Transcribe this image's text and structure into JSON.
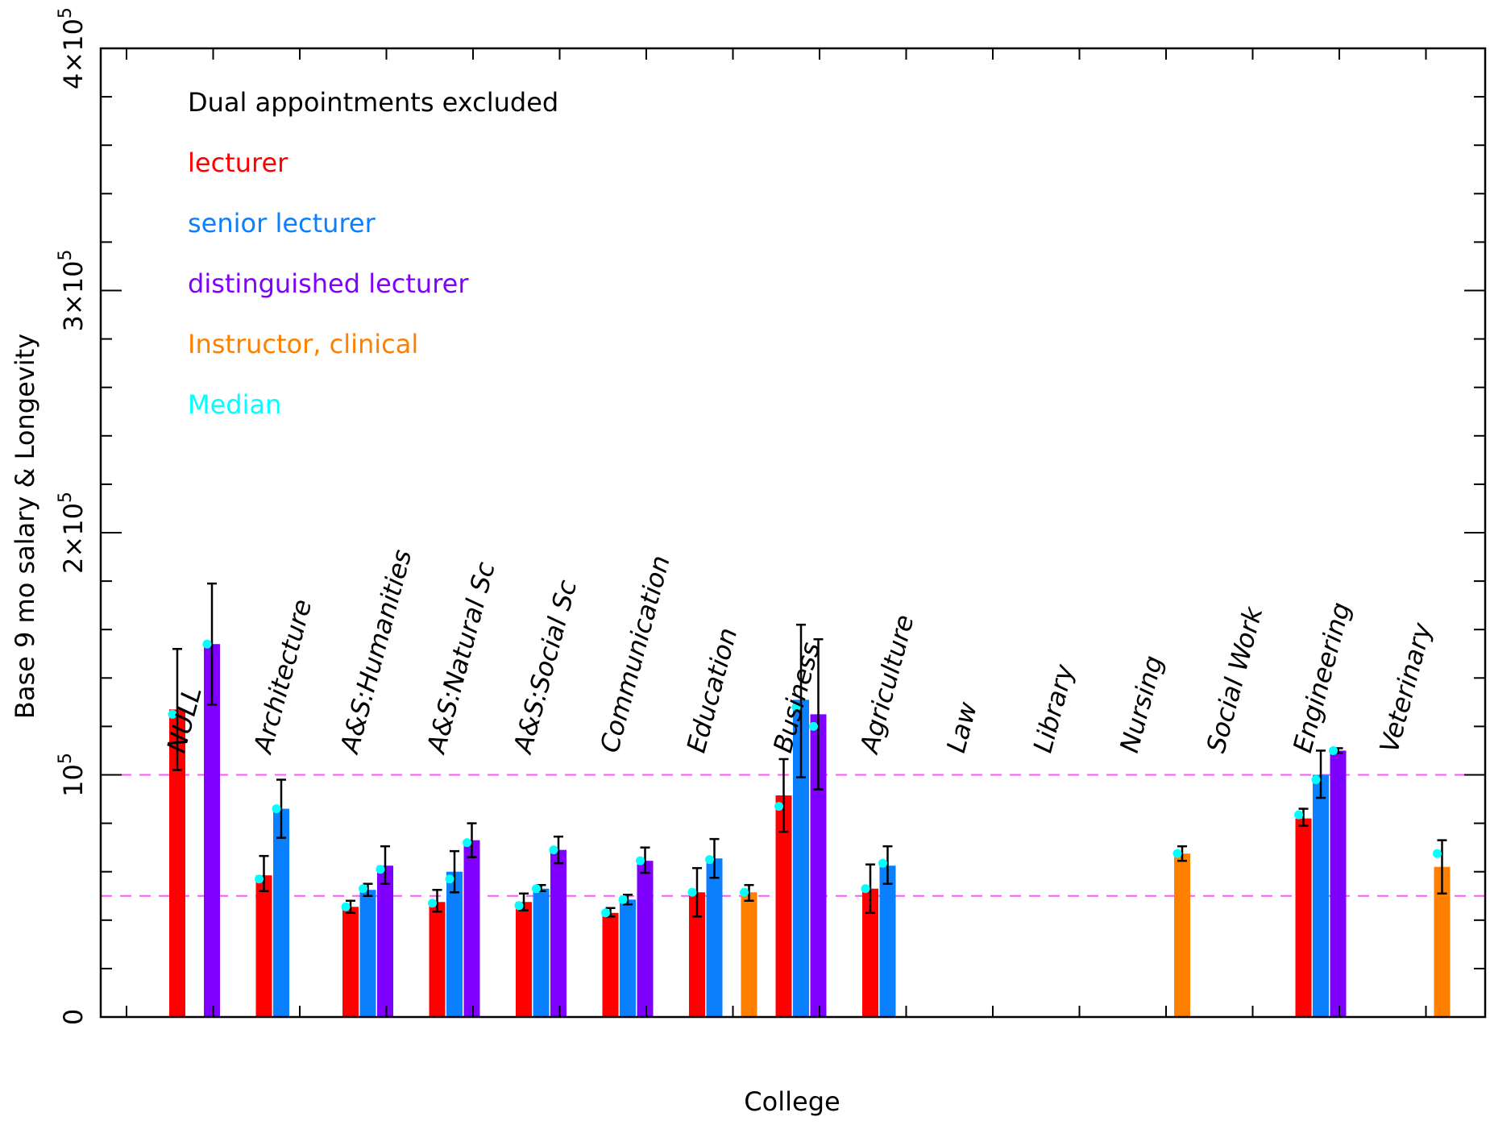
{
  "chart_data": {
    "type": "bar",
    "title": "",
    "xlabel": "College",
    "ylabel": "Base 9 mo salary & Longevity",
    "ylim": [
      0,
      400000
    ],
    "y_ticks": [
      {
        "value": 0,
        "label": "0"
      },
      {
        "value": 100000,
        "label": "10",
        "exp": "5"
      },
      {
        "value": 200000,
        "label": "2×10",
        "exp": "5"
      },
      {
        "value": 300000,
        "label": "3×10",
        "exp": "5"
      },
      {
        "value": 400000,
        "label": "4×10",
        "exp": "5"
      }
    ],
    "reference_lines": [
      50000,
      100000
    ],
    "reference_line_color": "#ff55ff",
    "legend": {
      "placement": "top-left",
      "items": [
        {
          "text": "Dual appointments excluded",
          "color": "#000000"
        },
        {
          "text": "lecturer",
          "color": "#ff0000"
        },
        {
          "text": "senior lecturer",
          "color": "#0a80ff"
        },
        {
          "text": "distinguished lecturer",
          "color": "#8000ff"
        },
        {
          "text": "Instructor, clinical",
          "color": "#ff8000"
        },
        {
          "text": "Median",
          "color": "#00ffff"
        }
      ]
    },
    "series_colors": {
      "lecturer": "#ff0000",
      "senior lecturer": "#0a80ff",
      "distinguished lecturer": "#8000ff",
      "Instructor, clinical": "#ff8000",
      "median": "#00ffff"
    },
    "categories": [
      "NULL",
      "Architecture",
      "A&S:Humanities",
      "A&S:Natural Sc",
      "A&S:Social Sc",
      "Communication",
      "Education",
      "Business",
      "Agriculture",
      "Law",
      "Library",
      "Nursing",
      "Social Work",
      "Engineering",
      "Veterinary"
    ],
    "bars": [
      {
        "category": "NULL",
        "series": "lecturer",
        "slot": 0,
        "value": 127000,
        "err_low": 102000,
        "err_high": 152000,
        "median": 125000
      },
      {
        "category": "NULL",
        "series": "distinguished lecturer",
        "slot": 2,
        "value": 154000,
        "err_low": 129000,
        "err_high": 179000,
        "median": 154000
      },
      {
        "category": "Architecture",
        "series": "lecturer",
        "slot": 0,
        "value": 58500,
        "err_low": 52000,
        "err_high": 66500,
        "median": 57000
      },
      {
        "category": "Architecture",
        "series": "senior lecturer",
        "slot": 1,
        "value": 86000,
        "err_low": 74000,
        "err_high": 98000,
        "median": 86000
      },
      {
        "category": "A&S:Humanities",
        "series": "lecturer",
        "slot": 0,
        "value": 45500,
        "err_low": 43000,
        "err_high": 48000,
        "median": 45500
      },
      {
        "category": "A&S:Humanities",
        "series": "senior lecturer",
        "slot": 1,
        "value": 52500,
        "err_low": 50000,
        "err_high": 55000,
        "median": 53000
      },
      {
        "category": "A&S:Humanities",
        "series": "distinguished lecturer",
        "slot": 2,
        "value": 62500,
        "err_low": 55000,
        "err_high": 70500,
        "median": 61000
      },
      {
        "category": "A&S:Natural Sc",
        "series": "lecturer",
        "slot": 0,
        "value": 47500,
        "err_low": 43500,
        "err_high": 52500,
        "median": 47000
      },
      {
        "category": "A&S:Natural Sc",
        "series": "senior lecturer",
        "slot": 1,
        "value": 60000,
        "err_low": 51500,
        "err_high": 68500,
        "median": 57000
      },
      {
        "category": "A&S:Natural Sc",
        "series": "distinguished lecturer",
        "slot": 2,
        "value": 73000,
        "err_low": 66000,
        "err_high": 80000,
        "median": 72000
      },
      {
        "category": "A&S:Social Sc",
        "series": "lecturer",
        "slot": 0,
        "value": 47500,
        "err_low": 44000,
        "err_high": 51000,
        "median": 46000
      },
      {
        "category": "A&S:Social Sc",
        "series": "senior lecturer",
        "slot": 1,
        "value": 53000,
        "err_low": 52000,
        "err_high": 54500,
        "median": 53000
      },
      {
        "category": "A&S:Social Sc",
        "series": "distinguished lecturer",
        "slot": 2,
        "value": 69000,
        "err_low": 63500,
        "err_high": 74500,
        "median": 69000
      },
      {
        "category": "Communication",
        "series": "lecturer",
        "slot": 0,
        "value": 43000,
        "err_low": 41500,
        "err_high": 45000,
        "median": 43000
      },
      {
        "category": "Communication",
        "series": "senior lecturer",
        "slot": 1,
        "value": 48500,
        "err_low": 46500,
        "err_high": 50500,
        "median": 48500
      },
      {
        "category": "Communication",
        "series": "distinguished lecturer",
        "slot": 2,
        "value": 64500,
        "err_low": 59500,
        "err_high": 70000,
        "median": 64500
      },
      {
        "category": "Education",
        "series": "lecturer",
        "slot": 0,
        "value": 51500,
        "err_low": 41500,
        "err_high": 61500,
        "median": 51500
      },
      {
        "category": "Education",
        "series": "senior lecturer",
        "slot": 1,
        "value": 65500,
        "err_low": 57500,
        "err_high": 73500,
        "median": 65000
      },
      {
        "category": "Education",
        "series": "Instructor, clinical",
        "slot": 3,
        "value": 51500,
        "err_low": 48000,
        "err_high": 54500,
        "median": 51500
      },
      {
        "category": "Business",
        "series": "lecturer",
        "slot": 0,
        "value": 91500,
        "err_low": 76500,
        "err_high": 106500,
        "median": 87000
      },
      {
        "category": "Business",
        "series": "senior lecturer",
        "slot": 1,
        "value": 131000,
        "err_low": 99000,
        "err_high": 162000,
        "median": 128000
      },
      {
        "category": "Business",
        "series": "distinguished lecturer",
        "slot": 2,
        "value": 125000,
        "err_low": 94000,
        "err_high": 156000,
        "median": 120000
      },
      {
        "category": "Agriculture",
        "series": "lecturer",
        "slot": 0,
        "value": 53000,
        "err_low": 43000,
        "err_high": 63000,
        "median": 53000
      },
      {
        "category": "Agriculture",
        "series": "senior lecturer",
        "slot": 1,
        "value": 62500,
        "err_low": 55000,
        "err_high": 70500,
        "median": 63500
      },
      {
        "category": "Nursing",
        "series": "Instructor, clinical",
        "slot": 3,
        "value": 67500,
        "err_low": 64500,
        "err_high": 70500,
        "median": 67500
      },
      {
        "category": "Engineering",
        "series": "lecturer",
        "slot": 0,
        "value": 82000,
        "err_low": 79000,
        "err_high": 86000,
        "median": 83500
      },
      {
        "category": "Engineering",
        "series": "senior lecturer",
        "slot": 1,
        "value": 100000,
        "err_low": 90500,
        "err_high": 110000,
        "median": 98000
      },
      {
        "category": "Engineering",
        "series": "distinguished lecturer",
        "slot": 2,
        "value": 110000,
        "err_low": 109000,
        "err_high": 111000,
        "median": 110000
      },
      {
        "category": "Veterinary",
        "series": "Instructor, clinical",
        "slot": 3,
        "value": 62000,
        "err_low": 51000,
        "err_high": 73000,
        "median": 67500
      }
    ]
  }
}
